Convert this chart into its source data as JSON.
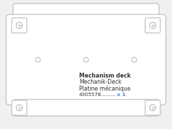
{
  "bg_color": "#f0f0f0",
  "line_color": "#b0b0b0",
  "plate_color": "#ffffff",
  "text_color": "#333333",
  "blue_color": "#4488cc",
  "title_lines": [
    "Mechanism deck",
    "Mechanik-Deck",
    "Platine mécanique"
  ],
  "part_number": "4305578",
  "dots": ".........",
  "quantity": "x 1",
  "font_size_title": 5.8,
  "font_size_part": 5.4,
  "lw": 0.7
}
